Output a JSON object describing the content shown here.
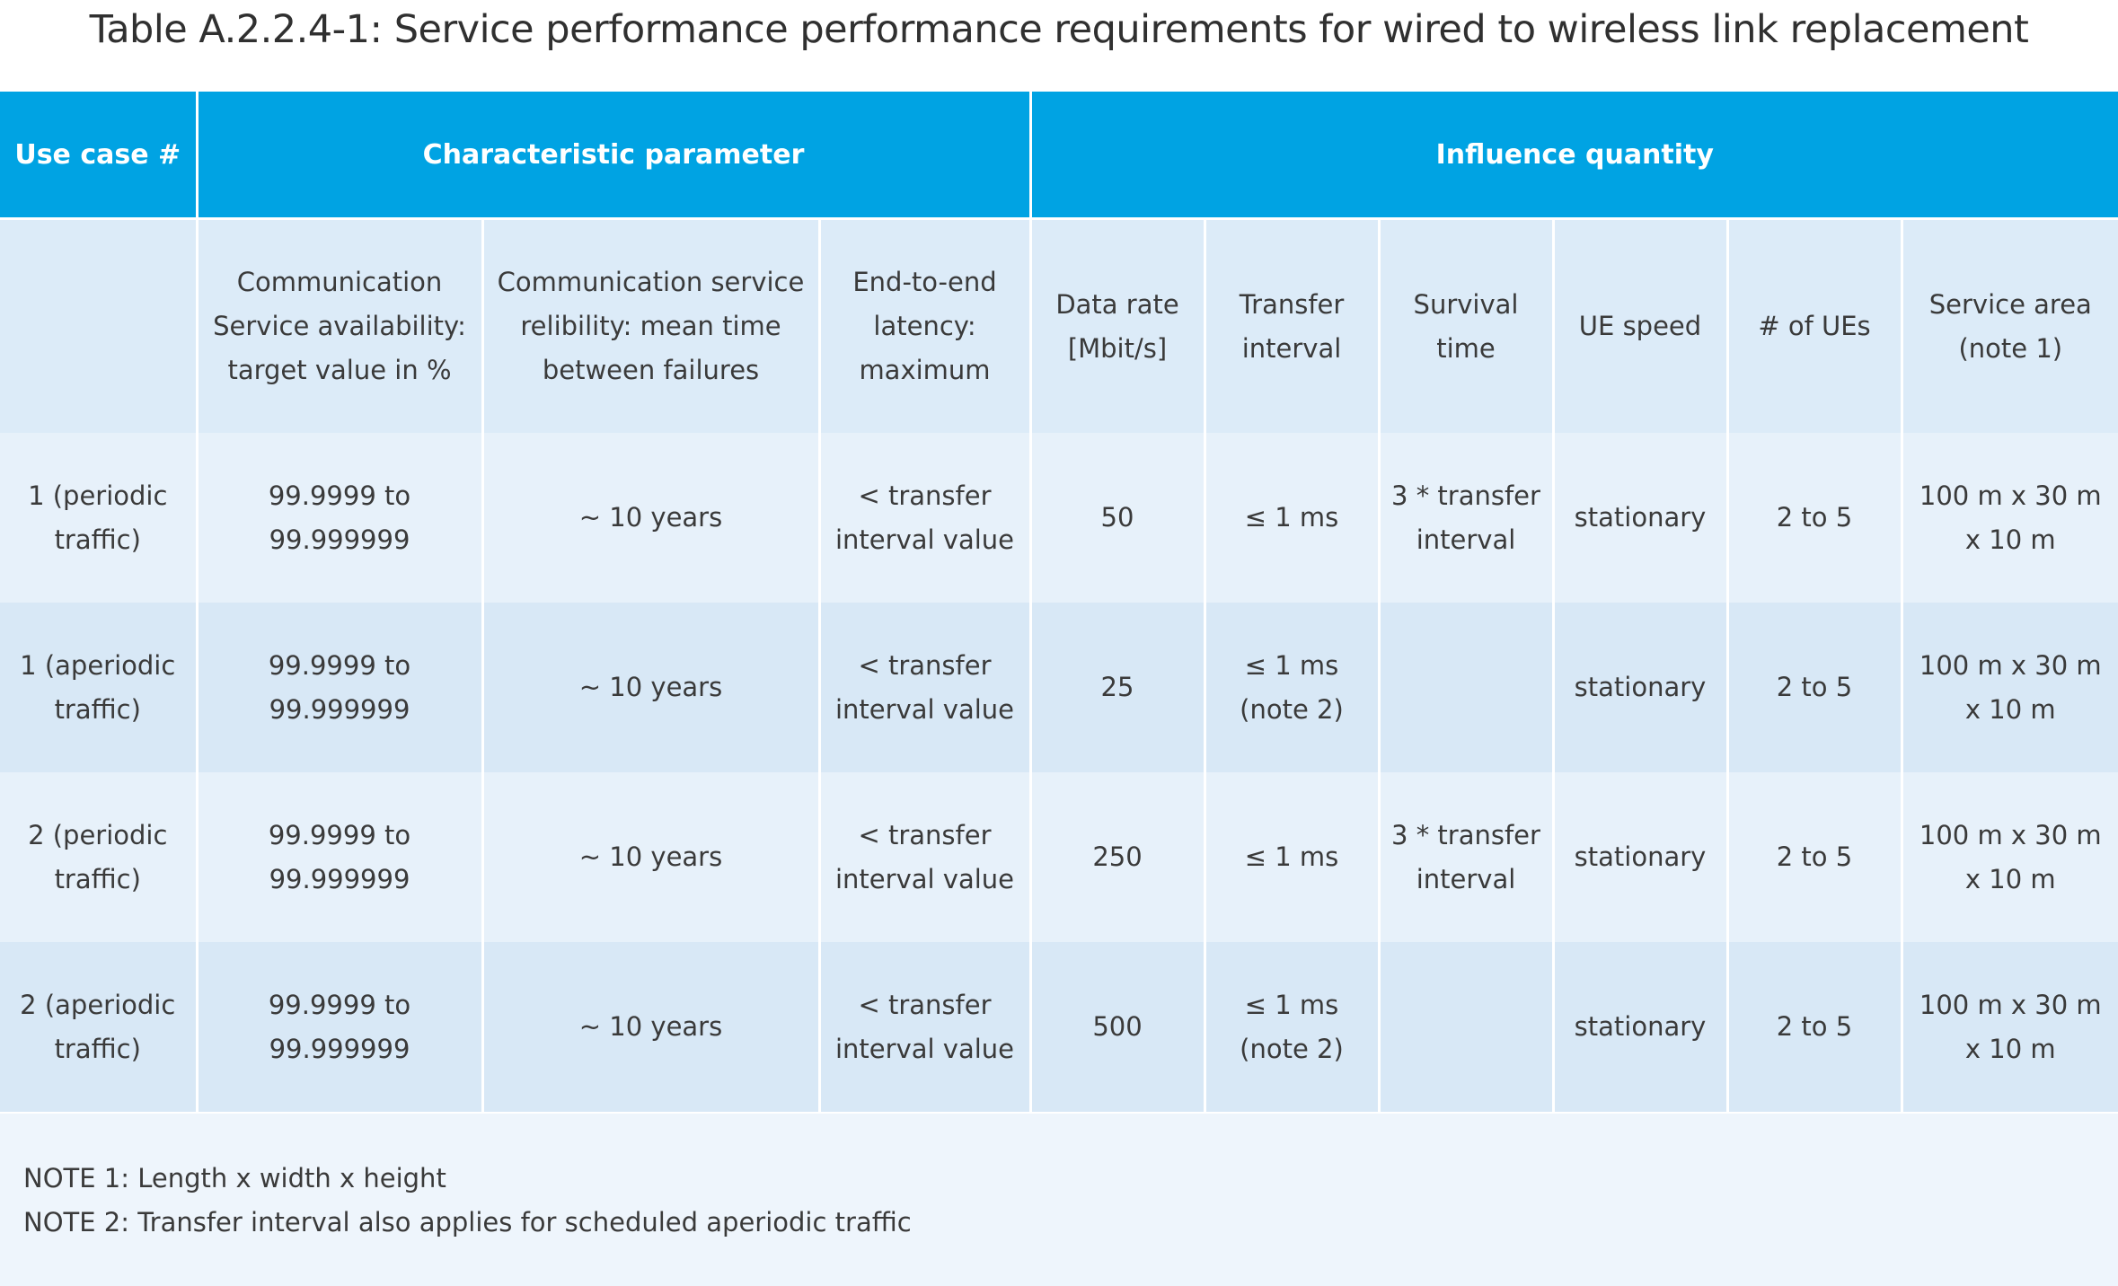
{
  "title": "Table A.2.2.4-1: Service performance performance requirements for wired to wireless link replacement",
  "header": {
    "use_case": "Use case #",
    "characteristic": "Characteristic parameter",
    "influence": "Influence quantity"
  },
  "subheader": [
    "",
    "Communication Service availability: target value in %",
    "Communication service relibility: mean time between failures",
    "End-to-end latency: maximum",
    "Data rate [Mbit/s]",
    "Transfer interval",
    "Survival time",
    "UE speed",
    "# of UEs",
    "Service area (note 1)"
  ],
  "rows": [
    [
      "1 (periodic traffic)",
      "99.9999 to 99.999999",
      "~ 10 years",
      "< transfer interval value",
      "50",
      "≤ 1 ms",
      "3 * transfer interval",
      "stationary",
      "2 to 5",
      "100 m x 30 m x 10 m"
    ],
    [
      "1 (aperiodic traffic)",
      "99.9999 to 99.999999",
      "~ 10 years",
      "< transfer interval value",
      "25",
      "≤ 1 ms (note 2)",
      "",
      "stationary",
      "2 to 5",
      "100 m x 30 m x 10 m"
    ],
    [
      "2 (periodic traffic)",
      "99.9999 to 99.999999",
      "~ 10 years",
      "< transfer interval value",
      "250",
      "≤ 1 ms",
      "3 * transfer interval",
      "stationary",
      "2 to 5",
      "100 m x 30 m x 10 m"
    ],
    [
      "2 (aperiodic traffic)",
      "99.9999 to 99.999999",
      "~ 10 years",
      "< transfer interval value",
      "500",
      "≤ 1 ms (note 2)",
      "",
      "stationary",
      "2 to 5",
      "100 m x 30 m x 10 m"
    ]
  ],
  "notes": [
    "NOTE 1: Length x width x height",
    "NOTE 2: Transfer interval also applies for scheduled aperiodic traffic"
  ]
}
